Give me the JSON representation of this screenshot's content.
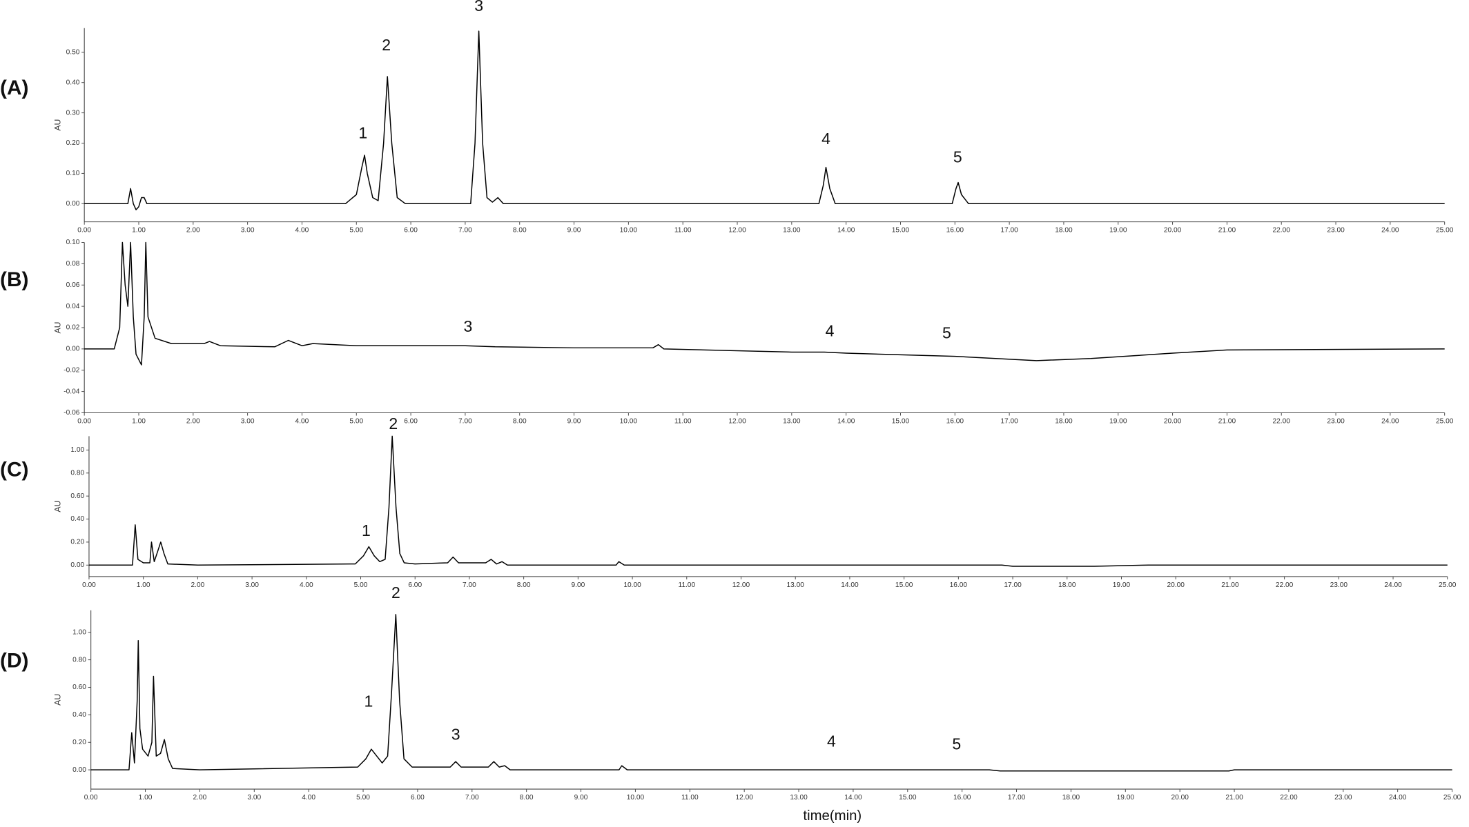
{
  "chart_data": [
    {
      "type": "line",
      "panel_label": "(A)",
      "y_label": "AU",
      "color": "#000000",
      "x": [
        0,
        0.8,
        0.85,
        0.9,
        0.95,
        1.0,
        1.05,
        1.1,
        1.15,
        2.0,
        4.8,
        5.0,
        5.1,
        5.15,
        5.2,
        5.3,
        5.4,
        5.5,
        5.57,
        5.65,
        5.75,
        5.9,
        7.1,
        7.18,
        7.25,
        7.32,
        7.4,
        7.5,
        7.6,
        7.7,
        13.5,
        13.58,
        13.63,
        13.7,
        13.8,
        15.95,
        16.02,
        16.06,
        16.12,
        16.25,
        25
      ],
      "values": [
        0,
        0,
        0.05,
        0,
        -0.02,
        -0.01,
        0.02,
        0.02,
        0,
        0,
        0,
        0.03,
        0.12,
        0.16,
        0.1,
        0.02,
        0.01,
        0.2,
        0.42,
        0.2,
        0.02,
        0,
        0,
        0.2,
        0.57,
        0.2,
        0.02,
        0.005,
        0.02,
        0,
        0,
        0.06,
        0.12,
        0.05,
        0,
        0,
        0.05,
        0.07,
        0.03,
        0,
        0
      ],
      "annotations": [
        {
          "text": "1",
          "x": 5.12,
          "y": 0.23
        },
        {
          "text": "2",
          "x": 5.55,
          "y": 0.52
        },
        {
          "text": "3",
          "x": 7.25,
          "y": 0.65
        },
        {
          "text": "4",
          "x": 13.63,
          "y": 0.21
        },
        {
          "text": "5",
          "x": 16.05,
          "y": 0.15
        }
      ],
      "xlim": [
        0,
        25
      ],
      "ylim": [
        -0.06,
        0.58
      ],
      "xticks": [
        {
          "value": 0,
          "label": "0.00"
        },
        {
          "value": 1,
          "label": "1.00"
        },
        {
          "value": 2,
          "label": "2.00"
        },
        {
          "value": 3,
          "label": "3.00"
        },
        {
          "value": 4,
          "label": "4.00"
        },
        {
          "value": 5,
          "label": "5.00"
        },
        {
          "value": 6,
          "label": "6.00"
        },
        {
          "value": 7,
          "label": "7.00"
        },
        {
          "value": 8,
          "label": "8.00"
        },
        {
          "value": 9,
          "label": "9.00"
        },
        {
          "value": 10,
          "label": "10.00"
        },
        {
          "value": 11,
          "label": "11.00"
        },
        {
          "value": 12,
          "label": "12.00"
        },
        {
          "value": 13,
          "label": "13.00"
        },
        {
          "value": 14,
          "label": "14.00"
        },
        {
          "value": 15,
          "label": "15.00"
        },
        {
          "value": 16,
          "label": "16.00"
        },
        {
          "value": 17,
          "label": "17.00"
        },
        {
          "value": 18,
          "label": "18.00"
        },
        {
          "value": 19,
          "label": "19.00"
        },
        {
          "value": 20,
          "label": "20.00"
        },
        {
          "value": 21,
          "label": "21.00"
        },
        {
          "value": 22,
          "label": "22.00"
        },
        {
          "value": 23,
          "label": "23.00"
        },
        {
          "value": 24,
          "label": "24.00"
        },
        {
          "value": 25,
          "label": "25.00"
        }
      ],
      "yticks": [
        {
          "value": 0,
          "label": "0.00"
        },
        {
          "value": 0.1,
          "label": "0.10"
        },
        {
          "value": 0.2,
          "label": "0.20"
        },
        {
          "value": 0.3,
          "label": "0.30"
        },
        {
          "value": 0.4,
          "label": "0.40"
        },
        {
          "value": 0.5,
          "label": "0.50"
        }
      ]
    },
    {
      "type": "line",
      "panel_label": "(B)",
      "y_label": "AU",
      "color": "#000000",
      "x": [
        0,
        0.55,
        0.65,
        0.7,
        0.75,
        0.8,
        0.85,
        0.9,
        0.95,
        1.0,
        1.05,
        1.1,
        1.13,
        1.17,
        1.3,
        1.6,
        2.2,
        2.3,
        2.5,
        3.5,
        3.75,
        4.0,
        4.2,
        5.0,
        7.0,
        7.55,
        9.0,
        10.45,
        10.55,
        10.65,
        13.0,
        13.6,
        14.0,
        16.0,
        17.5,
        18.5,
        20,
        21,
        25
      ],
      "values": [
        0,
        0,
        0.02,
        0.1,
        0.06,
        0.04,
        0.1,
        0.03,
        -0.005,
        -0.01,
        -0.015,
        0.03,
        0.1,
        0.03,
        0.01,
        0.005,
        0.005,
        0.007,
        0.003,
        0.002,
        0.008,
        0.003,
        0.005,
        0.003,
        0.003,
        0.002,
        0.001,
        0.001,
        0.004,
        0,
        -0.003,
        -0.003,
        -0.004,
        -0.007,
        -0.011,
        -0.009,
        -0.004,
        -0.001,
        0
      ],
      "annotations": [
        {
          "text": "3",
          "x": 7.05,
          "y": 0.02
        },
        {
          "text": "4",
          "x": 13.7,
          "y": 0.016
        },
        {
          "text": "5",
          "x": 15.85,
          "y": 0.014
        }
      ],
      "xlim": [
        0,
        25
      ],
      "ylim": [
        -0.06,
        0.1
      ],
      "xticks": [
        {
          "value": 0,
          "label": "0.00"
        },
        {
          "value": 1,
          "label": "1.00"
        },
        {
          "value": 2,
          "label": "2.00"
        },
        {
          "value": 3,
          "label": "3.00"
        },
        {
          "value": 4,
          "label": "4.00"
        },
        {
          "value": 5,
          "label": "5.00"
        },
        {
          "value": 6,
          "label": "6.00"
        },
        {
          "value": 7,
          "label": "7.00"
        },
        {
          "value": 8,
          "label": "8.00"
        },
        {
          "value": 9,
          "label": "9.00"
        },
        {
          "value": 10,
          "label": "10.00"
        },
        {
          "value": 11,
          "label": "11.00"
        },
        {
          "value": 12,
          "label": "12.00"
        },
        {
          "value": 13,
          "label": "13.00"
        },
        {
          "value": 14,
          "label": "14.00"
        },
        {
          "value": 15,
          "label": "15.00"
        },
        {
          "value": 16,
          "label": "16.00"
        },
        {
          "value": 17,
          "label": "17.00"
        },
        {
          "value": 18,
          "label": "18.00"
        },
        {
          "value": 19,
          "label": "19.00"
        },
        {
          "value": 20,
          "label": "20.00"
        },
        {
          "value": 21,
          "label": "21.00"
        },
        {
          "value": 22,
          "label": "22.00"
        },
        {
          "value": 23,
          "label": "23.00"
        },
        {
          "value": 24,
          "label": "24.00"
        },
        {
          "value": 25,
          "label": "25.00"
        }
      ],
      "yticks": [
        {
          "value": -0.06,
          "label": "-0.06"
        },
        {
          "value": -0.04,
          "label": "-0.04"
        },
        {
          "value": -0.02,
          "label": "-0.02"
        },
        {
          "value": 0,
          "label": "0.00"
        },
        {
          "value": 0.02,
          "label": "0.02"
        },
        {
          "value": 0.04,
          "label": "0.04"
        },
        {
          "value": 0.06,
          "label": "0.06"
        },
        {
          "value": 0.08,
          "label": "0.08"
        },
        {
          "value": 0.1,
          "label": "0.10"
        }
      ]
    },
    {
      "type": "line",
      "panel_label": "(C)",
      "y_label": "AU",
      "color": "#000000",
      "x": [
        0,
        0.8,
        0.85,
        0.9,
        1.0,
        1.12,
        1.15,
        1.2,
        1.25,
        1.32,
        1.38,
        1.45,
        2,
        4.9,
        5.05,
        5.15,
        5.25,
        5.35,
        5.45,
        5.52,
        5.58,
        5.65,
        5.72,
        5.8,
        6.0,
        6.6,
        6.7,
        6.8,
        7.3,
        7.4,
        7.5,
        7.6,
        7.7,
        9.7,
        9.75,
        9.85,
        16.8,
        17,
        18.5,
        19.5,
        25
      ],
      "values": [
        0,
        0,
        0.35,
        0.05,
        0.02,
        0.02,
        0.2,
        0.03,
        0.1,
        0.2,
        0.1,
        0.01,
        0,
        0.01,
        0.08,
        0.16,
        0.08,
        0.03,
        0.05,
        0.5,
        1.12,
        0.5,
        0.1,
        0.02,
        0.01,
        0.02,
        0.07,
        0.02,
        0.02,
        0.05,
        0.01,
        0.03,
        0,
        0,
        0.03,
        0,
        0,
        -0.01,
        -0.01,
        0,
        0
      ],
      "annotations": [
        {
          "text": "1",
          "x": 5.1,
          "y": 0.29
        },
        {
          "text": "2",
          "x": 5.6,
          "y": 1.22
        }
      ],
      "xlim": [
        0,
        25
      ],
      "ylim": [
        -0.1,
        1.12
      ],
      "xticks": [
        {
          "value": 0,
          "label": "0.00"
        },
        {
          "value": 1,
          "label": "1.00"
        },
        {
          "value": 2,
          "label": "2.00"
        },
        {
          "value": 3,
          "label": "3.00"
        },
        {
          "value": 4,
          "label": "4.00"
        },
        {
          "value": 5,
          "label": "5.00"
        },
        {
          "value": 6,
          "label": "6.00"
        },
        {
          "value": 7,
          "label": "7.00"
        },
        {
          "value": 8,
          "label": "8.00"
        },
        {
          "value": 9,
          "label": "9.00"
        },
        {
          "value": 10,
          "label": "10.00"
        },
        {
          "value": 11,
          "label": "11.00"
        },
        {
          "value": 12,
          "label": "12.00"
        },
        {
          "value": 13,
          "label": "13.00"
        },
        {
          "value": 14,
          "label": "14.00"
        },
        {
          "value": 15,
          "label": "15.00"
        },
        {
          "value": 16,
          "label": "16.00"
        },
        {
          "value": 17,
          "label": "17.00"
        },
        {
          "value": 18,
          "label": "18.00"
        },
        {
          "value": 19,
          "label": "19.00"
        },
        {
          "value": 20,
          "label": "20.00"
        },
        {
          "value": 21,
          "label": "21.00"
        },
        {
          "value": 22,
          "label": "22.00"
        },
        {
          "value": 23,
          "label": "23.00"
        },
        {
          "value": 24,
          "label": "24.00"
        },
        {
          "value": 25,
          "label": "25.00"
        }
      ],
      "yticks": [
        {
          "value": 0,
          "label": "0.00"
        },
        {
          "value": 0.2,
          "label": "0.20"
        },
        {
          "value": 0.4,
          "label": "0.40"
        },
        {
          "value": 0.6,
          "label": "0.60"
        },
        {
          "value": 0.8,
          "label": "0.80"
        },
        {
          "value": 1,
          "label": "1.00"
        }
      ]
    },
    {
      "type": "line",
      "panel_label": "(D)",
      "y_label": "AU",
      "x_label": "time(min)",
      "color": "#000000",
      "x": [
        0,
        0.7,
        0.75,
        0.8,
        0.85,
        0.87,
        0.9,
        0.95,
        1.05,
        1.12,
        1.15,
        1.2,
        1.28,
        1.35,
        1.42,
        1.5,
        2,
        4.9,
        5.05,
        5.15,
        5.25,
        5.35,
        5.45,
        5.52,
        5.6,
        5.67,
        5.75,
        5.9,
        6.6,
        6.7,
        6.8,
        7.3,
        7.4,
        7.5,
        7.6,
        7.7,
        9.7,
        9.75,
        9.85,
        16.5,
        16.7,
        20.9,
        21,
        25
      ],
      "values": [
        0,
        0,
        0.27,
        0.05,
        0.5,
        0.94,
        0.3,
        0.15,
        0.1,
        0.2,
        0.68,
        0.1,
        0.12,
        0.22,
        0.08,
        0.01,
        0,
        0.02,
        0.08,
        0.15,
        0.1,
        0.05,
        0.1,
        0.55,
        1.13,
        0.5,
        0.08,
        0.02,
        0.02,
        0.06,
        0.02,
        0.02,
        0.06,
        0.02,
        0.03,
        0,
        0,
        0.03,
        0,
        0,
        -0.008,
        -0.008,
        0,
        0
      ],
      "annotations": [
        {
          "text": "1",
          "x": 5.1,
          "y": 0.49
        },
        {
          "text": "2",
          "x": 5.6,
          "y": 1.28
        },
        {
          "text": "3",
          "x": 6.7,
          "y": 0.25
        },
        {
          "text": "4",
          "x": 13.6,
          "y": 0.2
        },
        {
          "text": "5",
          "x": 15.9,
          "y": 0.18
        }
      ],
      "xlim": [
        0,
        25
      ],
      "ylim": [
        -0.14,
        1.16
      ],
      "xticks": [
        {
          "value": 0,
          "label": "0.00"
        },
        {
          "value": 1,
          "label": "1.00"
        },
        {
          "value": 2,
          "label": "2.00"
        },
        {
          "value": 3,
          "label": "3.00"
        },
        {
          "value": 4,
          "label": "4.00"
        },
        {
          "value": 5,
          "label": "5.00"
        },
        {
          "value": 6,
          "label": "6.00"
        },
        {
          "value": 7,
          "label": "7.00"
        },
        {
          "value": 8,
          "label": "8.00"
        },
        {
          "value": 9,
          "label": "9.00"
        },
        {
          "value": 10,
          "label": "10.00"
        },
        {
          "value": 11,
          "label": "11.00"
        },
        {
          "value": 12,
          "label": "12.00"
        },
        {
          "value": 13,
          "label": "13.00"
        },
        {
          "value": 14,
          "label": "14.00"
        },
        {
          "value": 15,
          "label": "15.00"
        },
        {
          "value": 16,
          "label": "16.00"
        },
        {
          "value": 17,
          "label": "17.00"
        },
        {
          "value": 18,
          "label": "18.00"
        },
        {
          "value": 19,
          "label": "19.00"
        },
        {
          "value": 20,
          "label": "20.00"
        },
        {
          "value": 21,
          "label": "21.00"
        },
        {
          "value": 22,
          "label": "22.00"
        },
        {
          "value": 23,
          "label": "23.00"
        },
        {
          "value": 24,
          "label": "24.00"
        },
        {
          "value": 25,
          "label": "25.00"
        }
      ],
      "yticks": [
        {
          "value": 0,
          "label": "0.00"
        },
        {
          "value": 0.2,
          "label": "0.20"
        },
        {
          "value": 0.4,
          "label": "0.40"
        },
        {
          "value": 0.6,
          "label": "0.60"
        },
        {
          "value": 0.8,
          "label": "0.80"
        },
        {
          "value": 1,
          "label": "1.00"
        }
      ]
    }
  ]
}
